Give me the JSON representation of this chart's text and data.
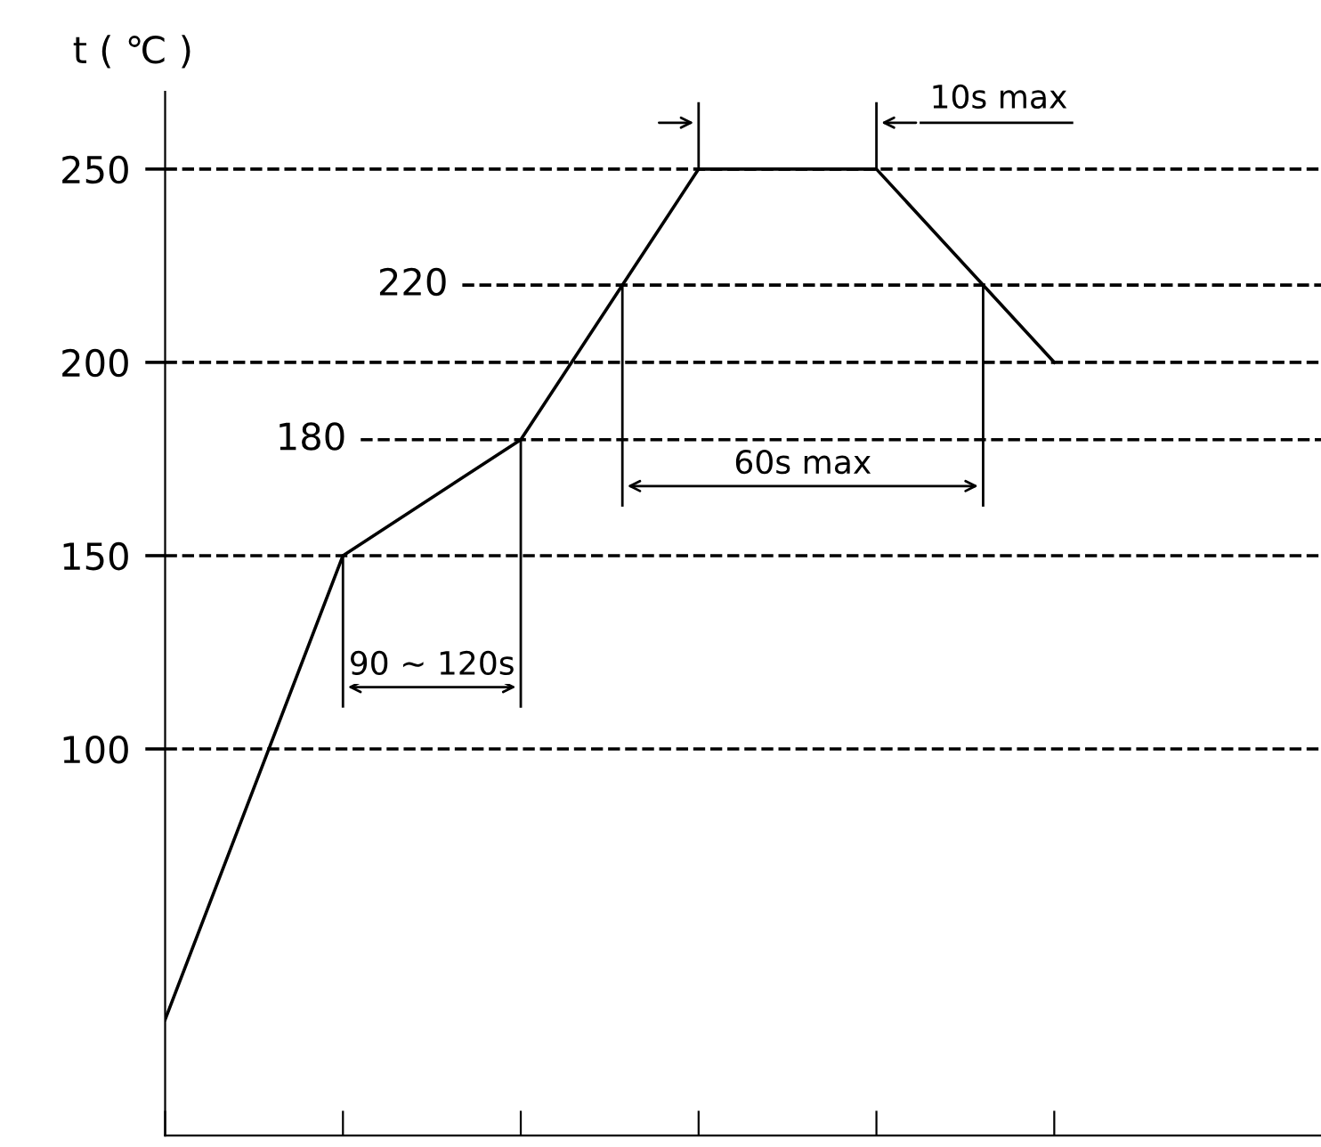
{
  "chart_data": {
    "type": "line",
    "ylabel": "t ( ℃ )",
    "categories": [
      null,
      null,
      null,
      null,
      null,
      null
    ],
    "series": [
      {
        "color": "#000000",
        "values": [
          30,
          150,
          180,
          250,
          250,
          200
        ]
      }
    ],
    "ylim": [
      0,
      270
    ],
    "yticks": [
      100,
      150,
      200,
      250
    ],
    "tick_labels": "y",
    "marker": "none",
    "line_style": "solid",
    "grid": false,
    "legend": false,
    "ref_lines": [
      {
        "axis": "y",
        "value": 100,
        "line_style": "dashed",
        "color": "#000000"
      },
      {
        "axis": "y",
        "value": 150,
        "line_style": "dashed",
        "color": "#000000"
      },
      {
        "axis": "y",
        "value": 200,
        "line_style": "dashed",
        "color": "#000000"
      },
      {
        "axis": "y",
        "value": 250,
        "line_style": "dashed",
        "color": "#000000"
      },
      {
        "axis": "y",
        "value": 180,
        "label": "180",
        "line_style": "dashed",
        "color": "#000000"
      },
      {
        "axis": "y",
        "value": 220,
        "label": "220",
        "line_style": "dashed",
        "color": "#000000"
      }
    ],
    "annotations": [
      "90 ~ 120s",
      "60s max",
      "10s max"
    ]
  }
}
